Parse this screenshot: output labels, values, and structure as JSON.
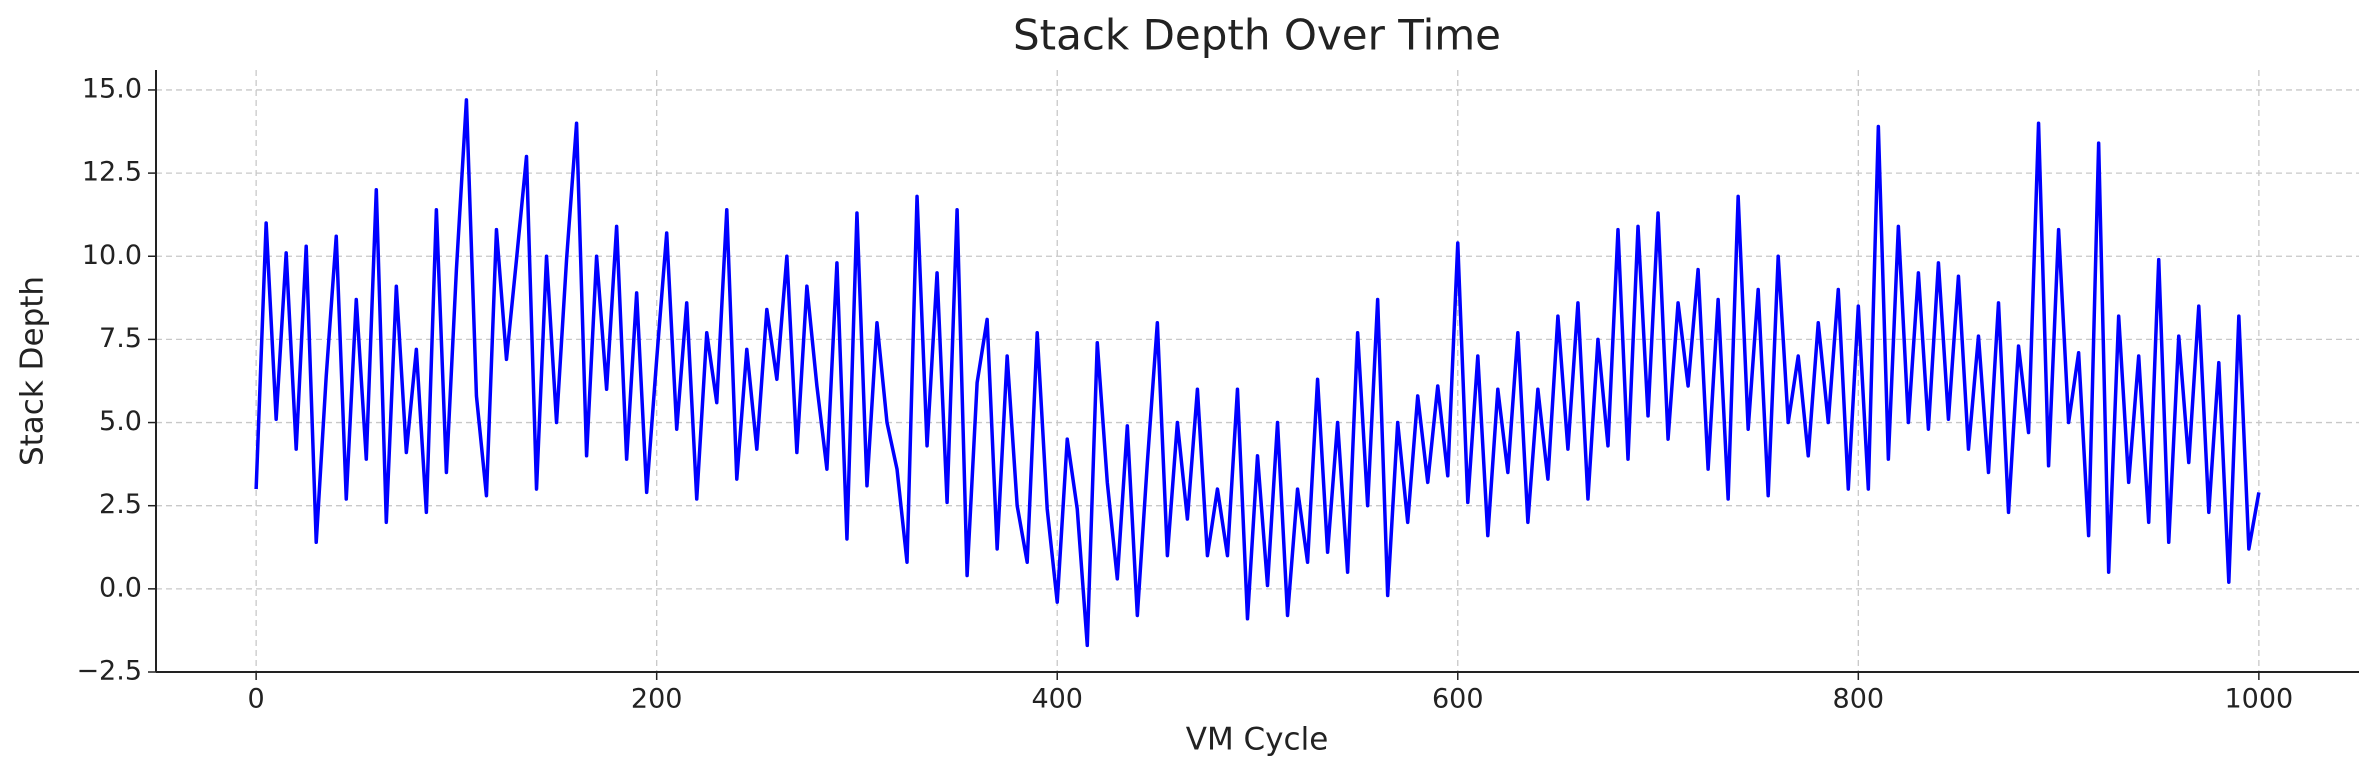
{
  "chart_data": {
    "type": "line",
    "title": "Stack Depth Over Time",
    "xlabel": "VM Cycle",
    "ylabel": "Stack Depth",
    "color": "#0000ff",
    "grid": true,
    "xlim": [
      -50,
      1050
    ],
    "ylim": [
      -2.5,
      15.6
    ],
    "xticks": [
      0,
      200,
      400,
      600,
      800,
      1000
    ],
    "yticks": [
      {
        "value": -2.5,
        "label": "−2.5"
      },
      {
        "value": 0,
        "label": "0.0"
      },
      2.5,
      {
        "value": 5,
        "label": "5.0"
      },
      7.5,
      {
        "value": 10,
        "label": "10.0"
      },
      12.5,
      {
        "value": 15,
        "label": "15.0"
      }
    ],
    "x": [
      0,
      5,
      10,
      15,
      20,
      25,
      30,
      35,
      40,
      45,
      50,
      55,
      60,
      65,
      70,
      75,
      80,
      85,
      90,
      95,
      100,
      105,
      110,
      115,
      120,
      125,
      130,
      135,
      140,
      145,
      150,
      155,
      160,
      165,
      170,
      175,
      180,
      185,
      190,
      195,
      200,
      205,
      210,
      215,
      220,
      225,
      230,
      235,
      240,
      245,
      250,
      255,
      260,
      265,
      270,
      275,
      280,
      285,
      290,
      295,
      300,
      305,
      310,
      315,
      320,
      325,
      330,
      335,
      340,
      345,
      350,
      355,
      360,
      365,
      370,
      375,
      380,
      385,
      390,
      395,
      400,
      405,
      410,
      415,
      420,
      425,
      430,
      435,
      440,
      445,
      450,
      455,
      460,
      465,
      470,
      475,
      480,
      485,
      490,
      495,
      500,
      505,
      510,
      515,
      520,
      525,
      530,
      535,
      540,
      545,
      550,
      555,
      560,
      565,
      570,
      575,
      580,
      585,
      590,
      595,
      600,
      605,
      610,
      615,
      620,
      625,
      630,
      635,
      640,
      645,
      650,
      655,
      660,
      665,
      670,
      675,
      680,
      685,
      690,
      695,
      700,
      705,
      710,
      715,
      720,
      725,
      730,
      735,
      740,
      745,
      750,
      755,
      760,
      765,
      770,
      775,
      780,
      785,
      790,
      795,
      800,
      805,
      810,
      815,
      820,
      825,
      830,
      835,
      840,
      845,
      850,
      855,
      860,
      865,
      870,
      875,
      880,
      885,
      890,
      895,
      900,
      905,
      910,
      915,
      920,
      925,
      930,
      935,
      940,
      945,
      950,
      955,
      960,
      965,
      970,
      975,
      980,
      985,
      990,
      995,
      1000
    ],
    "values": [
      3.0,
      11.0,
      5.1,
      10.1,
      4.2,
      10.3,
      1.4,
      6.4,
      10.6,
      2.7,
      8.7,
      3.9,
      12.0,
      2.0,
      9.1,
      4.1,
      7.2,
      2.3,
      11.4,
      3.5,
      9.6,
      14.7,
      5.8,
      2.8,
      10.8,
      6.9,
      9.9,
      13.0,
      3.0,
      10.0,
      5.0,
      9.9,
      14.0,
      4.0,
      10.0,
      6.0,
      10.9,
      3.9,
      8.9,
      2.9,
      6.9,
      10.7,
      4.8,
      8.6,
      2.7,
      7.7,
      5.6,
      11.4,
      3.3,
      7.2,
      4.2,
      8.4,
      6.3,
      10.0,
      4.1,
      9.1,
      6.1,
      3.6,
      9.8,
      1.5,
      11.3,
      3.1,
      8.0,
      5.0,
      3.6,
      0.8,
      11.8,
      4.3,
      9.5,
      2.6,
      11.4,
      0.4,
      6.2,
      8.1,
      1.2,
      7.0,
      2.5,
      0.8,
      7.7,
      2.4,
      -0.4,
      4.5,
      2.4,
      -1.7,
      7.4,
      3.2,
      0.3,
      4.9,
      -0.8,
      3.8,
      8.0,
      1.0,
      5.0,
      2.1,
      6.0,
      1.0,
      3.0,
      1.0,
      6.0,
      -0.9,
      4.0,
      0.1,
      5.0,
      -0.8,
      3.0,
      0.8,
      6.3,
      1.1,
      5.0,
      0.5,
      7.7,
      2.5,
      8.7,
      -0.2,
      5.0,
      2.0,
      5.8,
      3.2,
      6.1,
      3.4,
      10.4,
      2.6,
      7.0,
      1.6,
      6.0,
      3.5,
      7.7,
      2.0,
      6.0,
      3.3,
      8.2,
      4.2,
      8.6,
      2.7,
      7.5,
      4.3,
      10.8,
      3.9,
      10.9,
      5.2,
      11.3,
      4.5,
      8.6,
      6.1,
      9.6,
      3.6,
      8.7,
      2.7,
      11.8,
      4.8,
      9.0,
      2.8,
      10.0,
      5.0,
      7.0,
      4.0,
      8.0,
      5.0,
      9.0,
      3.0,
      8.5,
      3.0,
      13.9,
      3.9,
      10.9,
      5.0,
      9.5,
      4.8,
      9.8,
      5.1,
      9.4,
      4.2,
      7.6,
      3.5,
      8.6,
      2.3,
      7.3,
      4.7,
      14.0,
      3.7,
      10.8,
      5.0,
      7.1,
      1.6,
      13.4,
      0.5,
      8.2,
      3.2,
      7.0,
      2.0,
      9.9,
      1.4,
      7.6,
      3.8,
      8.5,
      2.3,
      6.8,
      0.2,
      8.2,
      1.2,
      2.9
    ]
  }
}
